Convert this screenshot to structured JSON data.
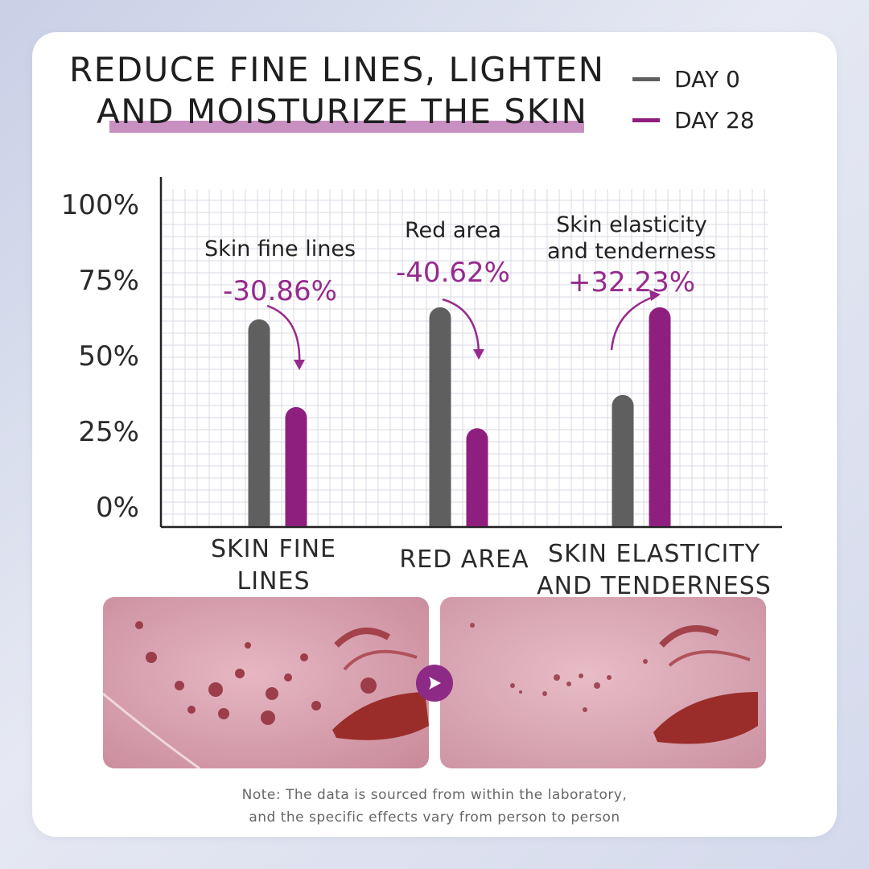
{
  "header": {
    "title_line1": "REDUCE FINE LINES, LIGHTEN",
    "title_line2": "AND MOISTURIZE THE SKIN"
  },
  "legend": [
    {
      "label": "DAY 0",
      "color": "#5f5f5f"
    },
    {
      "label": "DAY 28",
      "color": "#8e1f7f"
    }
  ],
  "chart_data": {
    "type": "bar",
    "categories": [
      "SKIN FINE\nLINES",
      "RED AREA",
      "SKIN ELASTICITY\nAND TENDERNESS"
    ],
    "series": [
      {
        "name": "DAY 0",
        "values": [
          62,
          66,
          37
        ],
        "color": "#5f5f5f"
      },
      {
        "name": "DAY 28",
        "values": [
          33,
          26,
          66
        ],
        "color": "#8e1f7f"
      }
    ],
    "ylim": [
      0,
      100
    ],
    "yticks": [
      "0%",
      "25%",
      "50%",
      "75%",
      "100%"
    ],
    "ytick_values": [
      0,
      25,
      50,
      75,
      100
    ],
    "grid": true,
    "annotations": [
      {
        "label": "Skin fine lines",
        "change": "-30.86%",
        "direction": "down"
      },
      {
        "label": "Red area",
        "change": "-40.62%",
        "direction": "down"
      },
      {
        "label": "Skin elasticity\nand tenderness",
        "change": "+32.23%",
        "direction": "up"
      }
    ]
  },
  "comparison": {
    "arrow_icon": "play-arrow-icon",
    "accent": "#8d2a86"
  },
  "note": {
    "line1": "Note: The data is sourced from within the laboratory,",
    "line2": "and the specific effects vary from person to person"
  }
}
